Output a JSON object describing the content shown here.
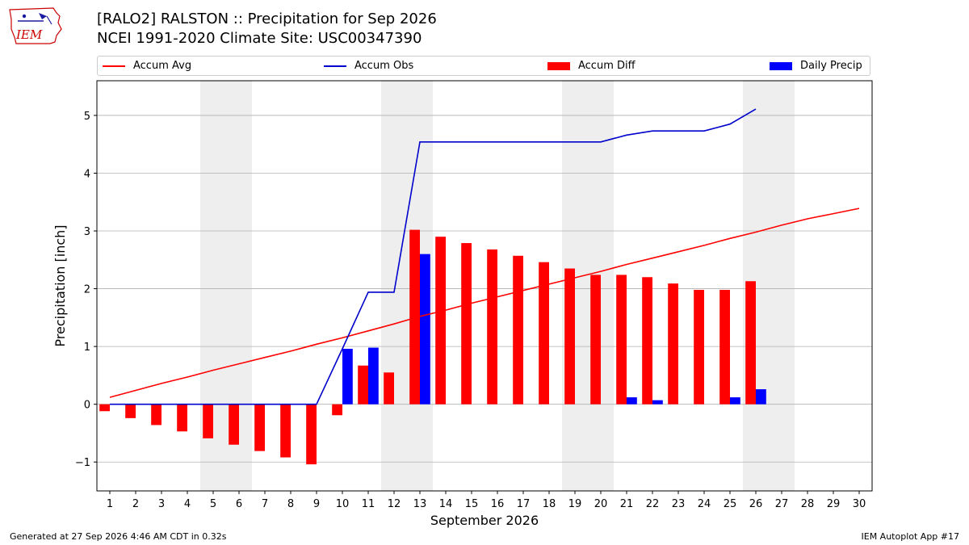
{
  "header": {
    "logo_text": "IEM",
    "title_line1": "[RALO2] RALSTON :: Precipitation for Sep 2026",
    "title_line2": "NCEI 1991-2020 Climate Site: USC00347390"
  },
  "footer": {
    "generated": "Generated at 27 Sep 2026 4:46 AM CDT in 0.32s",
    "app": "IEM Autoplot App #17"
  },
  "colors": {
    "avg": "#ff0000",
    "obs": "#0000cc",
    "diff": "#ff0000",
    "daily": "#0000ff",
    "weekend": "#eeeeee",
    "grid": "#b0b0b0"
  },
  "chart_data": {
    "type": "bar",
    "xlabel": "September 2026",
    "ylabel": "Precipitation [inch]",
    "xlim": [
      0.5,
      30.5
    ],
    "ylim": [
      -1.5,
      5.6
    ],
    "yticks": [
      -1,
      0,
      1,
      2,
      3,
      4,
      5
    ],
    "ytick_labels": [
      "−1",
      "0",
      "1",
      "2",
      "3",
      "4",
      "5"
    ],
    "days": [
      1,
      2,
      3,
      4,
      5,
      6,
      7,
      8,
      9,
      10,
      11,
      12,
      13,
      14,
      15,
      16,
      17,
      18,
      19,
      20,
      21,
      22,
      23,
      24,
      25,
      26,
      27,
      28,
      29,
      30
    ],
    "weekend_days": [
      5,
      6,
      12,
      13,
      19,
      20,
      26,
      27
    ],
    "grid": true,
    "legend_position": "top",
    "series": [
      {
        "name": "Accum Avg",
        "kind": "line",
        "x": [
          1,
          2,
          3,
          4,
          5,
          6,
          7,
          8,
          9,
          10,
          11,
          12,
          13,
          14,
          15,
          16,
          17,
          18,
          19,
          20,
          21,
          22,
          23,
          24,
          25,
          26,
          27,
          28,
          29,
          30
        ],
        "values": [
          0.12,
          0.24,
          0.36,
          0.47,
          0.59,
          0.7,
          0.81,
          0.92,
          1.04,
          1.15,
          1.27,
          1.39,
          1.52,
          1.63,
          1.75,
          1.86,
          1.97,
          2.08,
          2.19,
          2.3,
          2.42,
          2.53,
          2.64,
          2.75,
          2.87,
          2.98,
          3.1,
          3.21,
          3.3,
          3.39
        ]
      },
      {
        "name": "Accum Obs",
        "kind": "line",
        "x": [
          1,
          2,
          3,
          4,
          5,
          6,
          7,
          8,
          9,
          10,
          11,
          12,
          13,
          14,
          15,
          16,
          17,
          18,
          19,
          20,
          21,
          22,
          23,
          24,
          25,
          26
        ],
        "values": [
          0,
          0,
          0,
          0,
          0,
          0,
          0,
          0,
          0,
          0.96,
          1.94,
          1.94,
          4.54,
          4.54,
          4.54,
          4.54,
          4.54,
          4.54,
          4.54,
          4.54,
          4.66,
          4.73,
          4.73,
          4.73,
          4.85,
          5.11
        ]
      },
      {
        "name": "Accum Diff",
        "kind": "bar",
        "x": [
          1,
          2,
          3,
          4,
          5,
          6,
          7,
          8,
          9,
          10,
          11,
          12,
          13,
          14,
          15,
          16,
          17,
          18,
          19,
          20,
          21,
          22,
          23,
          24,
          25,
          26
        ],
        "values": [
          -0.12,
          -0.24,
          -0.36,
          -0.47,
          -0.59,
          -0.7,
          -0.81,
          -0.92,
          -1.04,
          -0.19,
          0.67,
          0.55,
          3.02,
          2.9,
          2.79,
          2.68,
          2.57,
          2.46,
          2.35,
          2.24,
          2.24,
          2.2,
          2.09,
          1.98,
          1.98,
          2.13
        ]
      },
      {
        "name": "Daily Precip",
        "kind": "bar",
        "x": [
          1,
          2,
          3,
          4,
          5,
          6,
          7,
          8,
          9,
          10,
          11,
          12,
          13,
          14,
          15,
          16,
          17,
          18,
          19,
          20,
          21,
          22,
          23,
          24,
          25,
          26
        ],
        "values": [
          0,
          0,
          0,
          0,
          0,
          0,
          0,
          0,
          0,
          0.96,
          0.98,
          0,
          2.6,
          0,
          0,
          0,
          0,
          0,
          0,
          0,
          0.12,
          0.07,
          0,
          0,
          0.12,
          0.26
        ]
      }
    ]
  }
}
